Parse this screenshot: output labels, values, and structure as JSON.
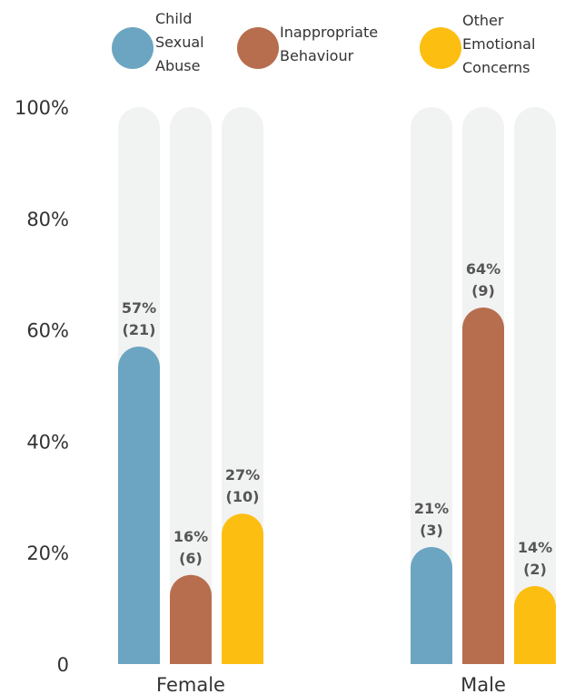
{
  "chart_data": {
    "type": "bar",
    "categories": [
      "Female",
      "Male"
    ],
    "series": [
      {
        "name": "Child Sexual Abuse",
        "legend_lines": [
          "Child",
          "Sexual",
          "Abuse"
        ],
        "color": "#6BA5C2",
        "values": [
          57,
          21
        ],
        "counts": [
          "(21)",
          "(3)"
        ],
        "labels": [
          "57%",
          "21%"
        ]
      },
      {
        "name": "Inappropriate Behaviour",
        "legend_lines": [
          "Inappropriate",
          "Behaviour"
        ],
        "color": "#B76E4E",
        "values": [
          16,
          64
        ],
        "counts": [
          "(6)",
          "(9)"
        ],
        "labels": [
          "16%",
          "64%"
        ]
      },
      {
        "name": "Other Emotional Concerns",
        "legend_lines": [
          "Other",
          "Emotional",
          "Concerns"
        ],
        "color": "#FDBE12",
        "values": [
          27,
          14
        ],
        "counts": [
          "(10)",
          "(2)"
        ],
        "labels": [
          "27%",
          "14%"
        ]
      }
    ],
    "ylim": [
      0,
      100
    ],
    "yticks": [
      "0",
      "20%",
      "40%",
      "60%",
      "80%",
      "100%"
    ],
    "track_color": "#F1F2F2",
    "title": "",
    "xlabel": "",
    "ylabel": ""
  }
}
